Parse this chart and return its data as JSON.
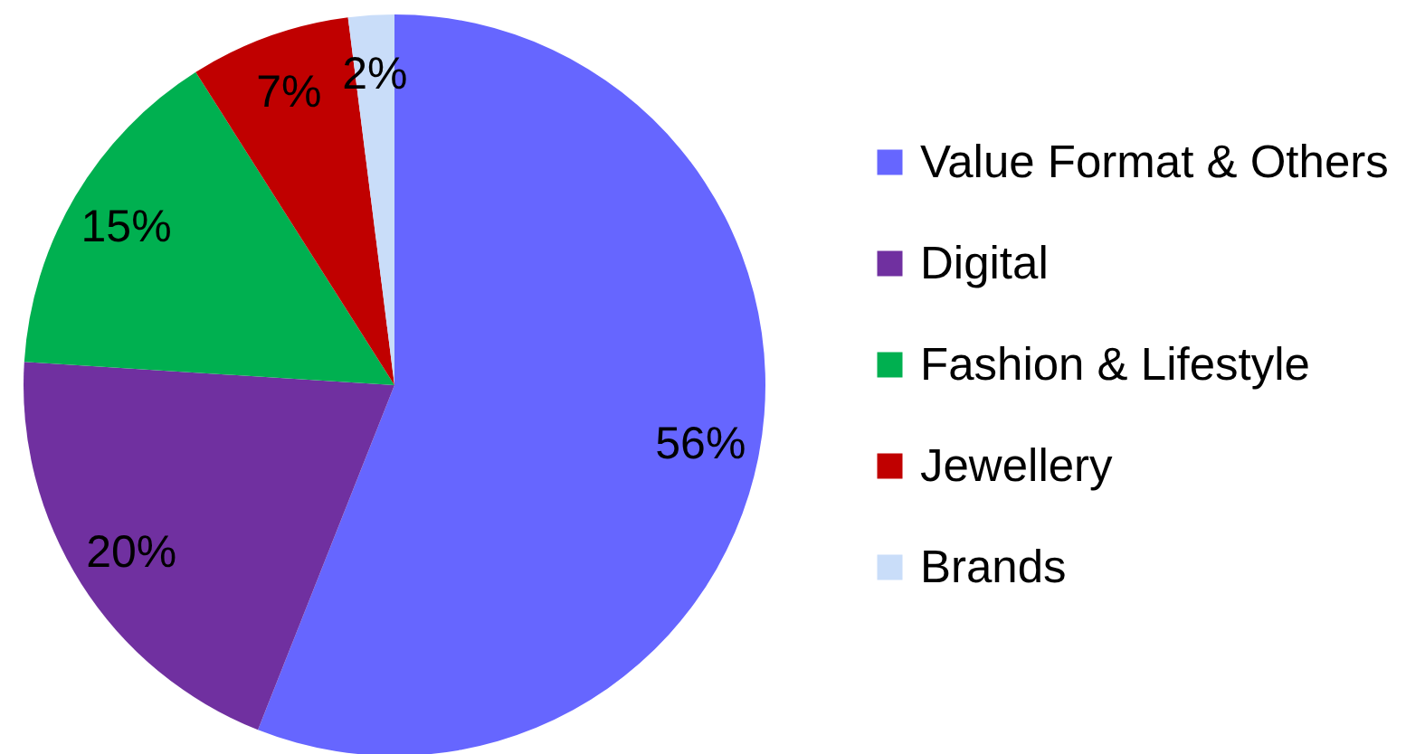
{
  "chart_data": {
    "type": "pie",
    "categories": [
      "Value Format & Others",
      "Digital",
      "Fashion & Lifestyle",
      "Jewellery",
      "Brands"
    ],
    "values": [
      56,
      20,
      15,
      7,
      2
    ],
    "value_labels": [
      "56%",
      "20%",
      "15%",
      "7%",
      "2%"
    ],
    "colors": [
      "#6666ff",
      "#7030a0",
      "#00b050",
      "#c00000",
      "#c9ddf9"
    ],
    "legend": "right"
  }
}
